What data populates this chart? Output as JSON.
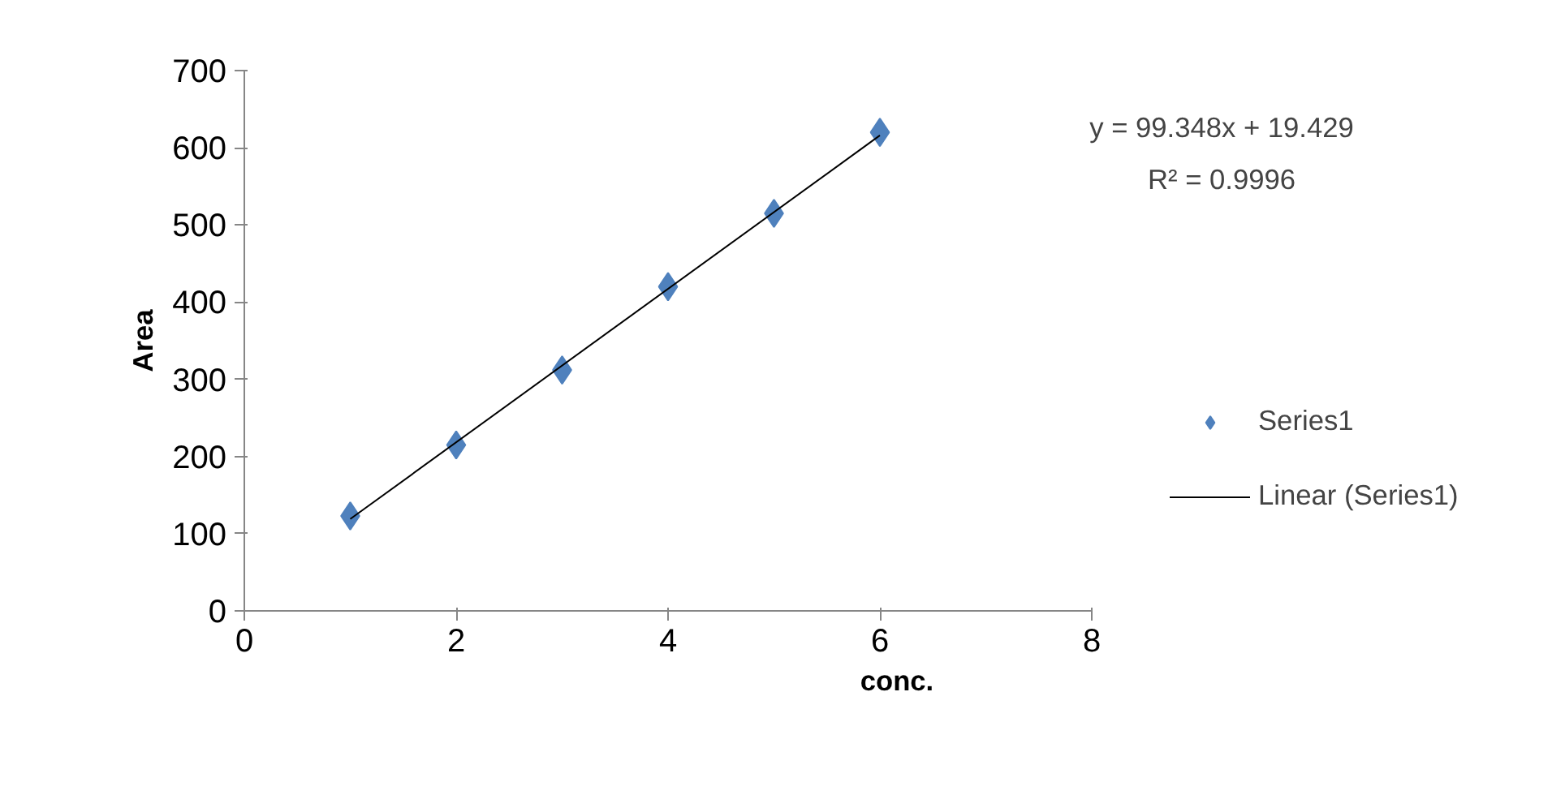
{
  "chart_data": {
    "type": "scatter",
    "xlabel": "conc.",
    "ylabel": "Area",
    "x": [
      1,
      2,
      3,
      4,
      5,
      6
    ],
    "series": [
      {
        "name": "Series1",
        "type": "scatter",
        "color": "#4f81bd",
        "marker": "diamond",
        "values": [
          123,
          215,
          312,
          420,
          515,
          620
        ]
      },
      {
        "name": "Linear (Series1)",
        "type": "line",
        "color": "#000000",
        "marker": "none",
        "x": [
          1,
          6
        ],
        "values": [
          119,
          616
        ]
      }
    ],
    "annotations": [
      "y = 99.348x + 19.429",
      "R² = 0.9996"
    ],
    "xlim": [
      0,
      8
    ],
    "xticks": [
      0,
      2,
      4,
      6,
      8
    ],
    "ylim": [
      0,
      700
    ],
    "yticks": [
      0,
      100,
      200,
      300,
      400,
      500,
      600,
      700
    ],
    "grid": false,
    "legend": "right"
  }
}
